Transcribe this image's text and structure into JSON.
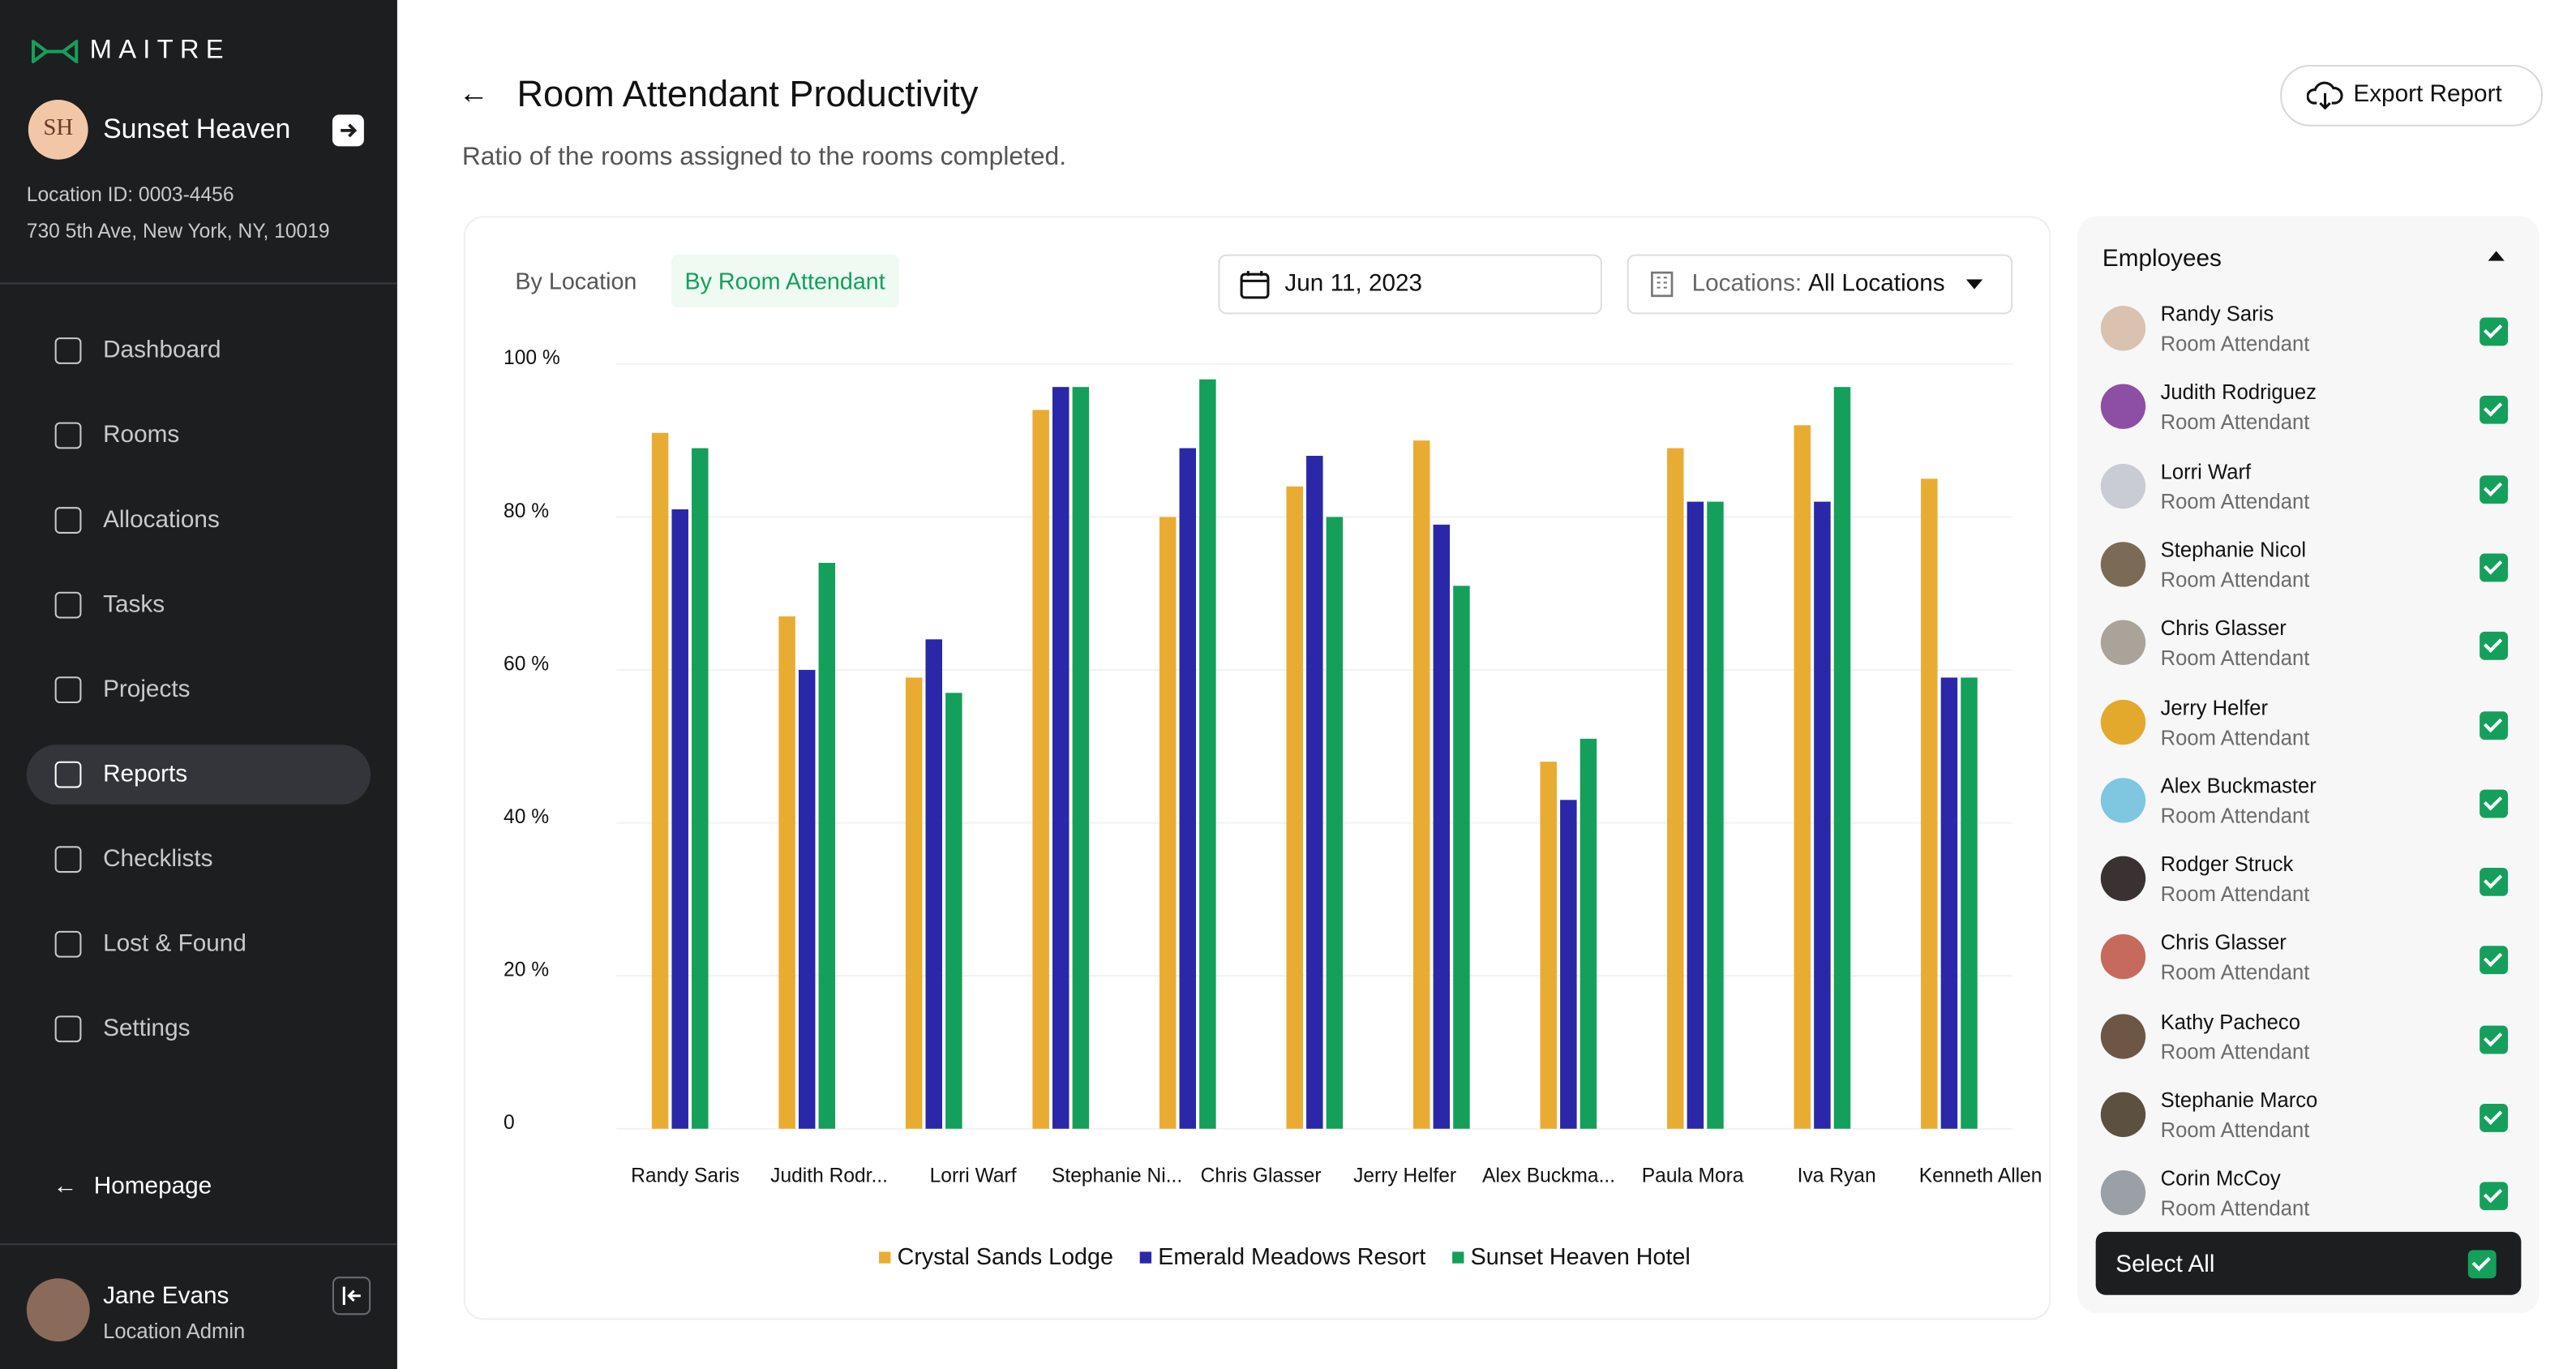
{
  "sidebar": {
    "brand": "MAITRE",
    "initials": "SH",
    "property": "Sunset Heaven",
    "location_id": "Location ID: 0003-4456",
    "address": "730 5th Ave, New York, NY, 10019",
    "nav": [
      "Dashboard",
      "Rooms",
      "Allocations",
      "Tasks",
      "Projects",
      "Reports",
      "Checklists",
      "Lost & Found",
      "Settings"
    ],
    "homepage": "Homepage",
    "user": {
      "name": "Jane Evans",
      "role": "Location Admin"
    }
  },
  "header": {
    "title": "Room Attendant Productivity",
    "subtitle": "Ratio of the rooms assigned to the rooms completed.",
    "export": "Export Report"
  },
  "filters": {
    "tabs": [
      "By Location",
      "By Room Attendant"
    ],
    "date": "Jun 11, 2023",
    "location_label": "Locations:",
    "location_value": "All Locations"
  },
  "chart_data": {
    "type": "bar",
    "categories": [
      "Randy Saris",
      "Judith Rodr...",
      "Lorri Warf",
      "Stephanie Ni...",
      "Chris Glasser",
      "Jerry Helfer",
      "Alex Buckma...",
      "Paula Mora",
      "Iva Ryan",
      "Kenneth Allen",
      null
    ],
    "series": [
      {
        "name": "Crystal Sands Lodge",
        "color": "#e9ac33",
        "values": [
          91,
          67,
          59,
          94,
          80,
          84,
          90,
          48,
          89,
          92,
          85
        ]
      },
      {
        "name": "Emerald Meadows Resort",
        "color": "#2a28a8",
        "values": [
          81,
          60,
          64,
          97,
          89,
          88,
          79,
          43,
          82,
          82,
          59
        ]
      },
      {
        "name": "Sunset Heaven Hotel",
        "color": "#14a05a",
        "values": [
          89,
          74,
          57,
          97,
          98,
          80,
          71,
          51,
          82,
          97,
          59
        ]
      }
    ],
    "ylim": [
      0,
      100
    ],
    "yticks": [
      0,
      {
        "value": 20,
        "label": "20 %"
      },
      {
        "value": 40,
        "label": "40 %"
      },
      {
        "value": 60,
        "label": "60 %"
      },
      {
        "value": 80,
        "label": "80 %"
      },
      {
        "value": 100,
        "label": "100 %"
      }
    ],
    "grid": true,
    "legend": "bottom"
  },
  "employees": {
    "title": "Employees",
    "list": [
      {
        "name": "Randy Saris",
        "role": "Room Attendant"
      },
      {
        "name": "Judith Rodriguez",
        "role": "Room Attendant"
      },
      {
        "name": "Lorri Warf",
        "role": "Room Attendant"
      },
      {
        "name": "Stephanie Nicol",
        "role": "Room Attendant"
      },
      {
        "name": "Chris Glasser",
        "role": "Room Attendant"
      },
      {
        "name": "Jerry Helfer",
        "role": "Room Attendant"
      },
      {
        "name": "Alex Buckmaster",
        "role": "Room Attendant"
      },
      {
        "name": "Rodger Struck",
        "role": "Room Attendant"
      },
      {
        "name": "Chris Glasser",
        "role": "Room Attendant"
      },
      {
        "name": "Kathy Pacheco",
        "role": "Room Attendant"
      },
      {
        "name": "Stephanie Marco",
        "role": "Room Attendant"
      },
      {
        "name": "Corin McCoy",
        "role": "Room Attendant"
      }
    ],
    "select_all": "Select All"
  }
}
